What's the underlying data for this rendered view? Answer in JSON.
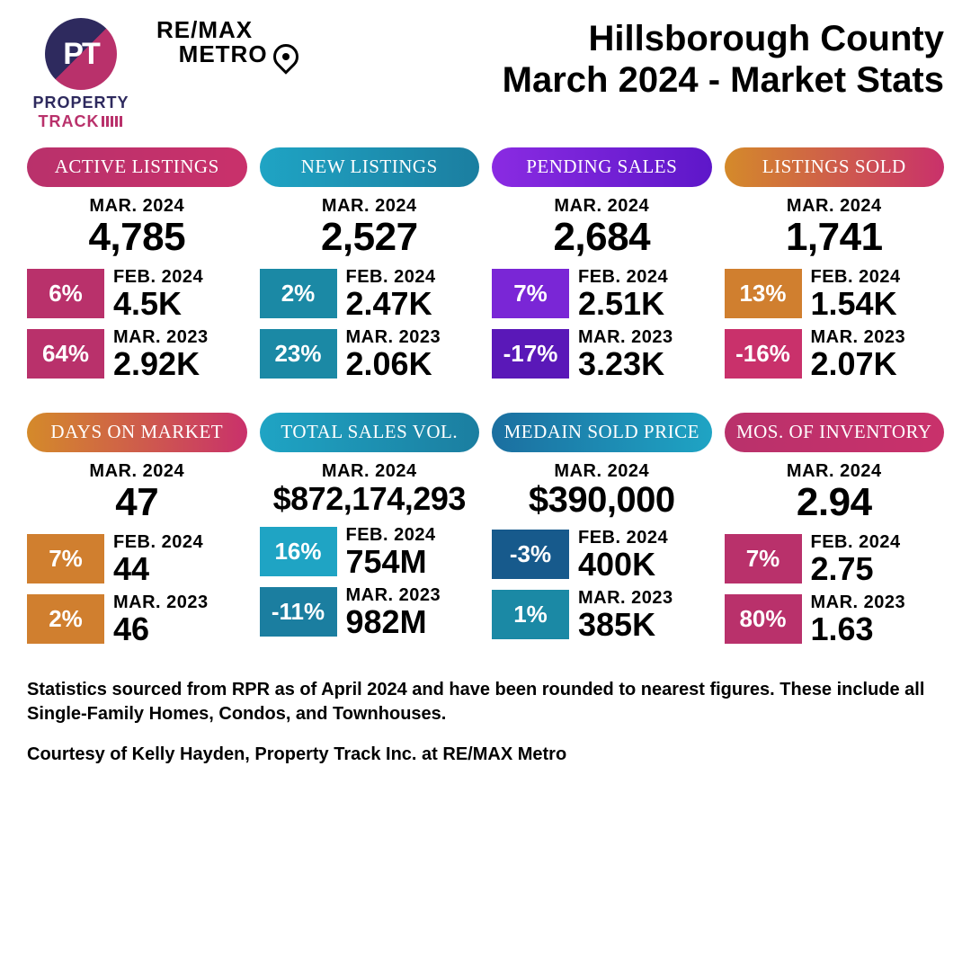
{
  "header": {
    "logo1_top": "PT",
    "logo1_line1": "PROPERTY",
    "logo1_line2": "TRACK",
    "logo2_line1": "RE/MAX",
    "logo2_line2": "METRO",
    "title_line1": "Hillsborough County",
    "title_line2": "March 2024 - Market Stats"
  },
  "cards": [
    {
      "label": "ACTIVE LISTINGS",
      "pill_gradient": "linear-gradient(90deg,#b9316b,#c9316b)",
      "current_label": "MAR. 2024",
      "current_value": "4,785",
      "rows": [
        {
          "pct": "6%",
          "box_bg": "#b9316b",
          "lbl": "FEB. 2024",
          "val": "4.5K"
        },
        {
          "pct": "64%",
          "box_bg": "#b9316b",
          "lbl": "MAR. 2023",
          "val": "2.92K"
        }
      ]
    },
    {
      "label": "NEW LISTINGS",
      "pill_gradient": "linear-gradient(90deg,#1fa4c4,#1b7ea0)",
      "current_label": "MAR. 2024",
      "current_value": "2,527",
      "rows": [
        {
          "pct": "2%",
          "box_bg": "#1b89a5",
          "lbl": "FEB. 2024",
          "val": "2.47K"
        },
        {
          "pct": "23%",
          "box_bg": "#1b89a5",
          "lbl": "MAR. 2023",
          "val": "2.06K"
        }
      ]
    },
    {
      "label": "PENDING SALES",
      "pill_gradient": "linear-gradient(90deg,#8a2be2,#5e17c9)",
      "current_label": "MAR. 2024",
      "current_value": "2,684",
      "rows": [
        {
          "pct": "7%",
          "box_bg": "#7a26d6",
          "lbl": "FEB. 2024",
          "val": "2.51K"
        },
        {
          "pct": "-17%",
          "box_bg": "#5a18b8",
          "lbl": "MAR. 2023",
          "val": "3.23K"
        }
      ]
    },
    {
      "label": "LISTINGS SOLD",
      "pill_gradient": "linear-gradient(90deg,#d48a2a,#c9316b)",
      "current_label": "MAR. 2024",
      "current_value": "1,741",
      "rows": [
        {
          "pct": "13%",
          "box_bg": "#d07f2f",
          "lbl": "FEB. 2024",
          "val": "1.54K"
        },
        {
          "pct": "-16%",
          "box_bg": "#c9316b",
          "lbl": "MAR. 2023",
          "val": "2.07K"
        }
      ]
    },
    {
      "label": "DAYS ON MARKET",
      "pill_gradient": "linear-gradient(90deg,#d48a2a,#c9316b)",
      "current_label": "MAR. 2024",
      "current_value": "47",
      "rows": [
        {
          "pct": "7%",
          "box_bg": "#d07f2f",
          "lbl": "FEB. 2024",
          "val": "44"
        },
        {
          "pct": "2%",
          "box_bg": "#d07f2f",
          "lbl": "MAR. 2023",
          "val": "46"
        }
      ]
    },
    {
      "label": "TOTAL SALES VOL.",
      "pill_gradient": "linear-gradient(90deg,#1fa4c4,#1b7ea0)",
      "current_label": "MAR. 2024",
      "current_value": "$872,174,293",
      "current_size": "36px",
      "rows": [
        {
          "pct": "16%",
          "box_bg": "#1fa4c4",
          "lbl": "FEB. 2024",
          "val": "754M"
        },
        {
          "pct": "-11%",
          "box_bg": "#1b7ea0",
          "lbl": "MAR. 2023",
          "val": "982M"
        }
      ]
    },
    {
      "label": "MEDAIN SOLD PRICE",
      "pill_gradient": "linear-gradient(90deg,#1b6fa0,#1fa4c4)",
      "current_label": "MAR. 2024",
      "current_value": "$390,000",
      "current_size": "40px",
      "rows": [
        {
          "pct": "-3%",
          "box_bg": "#175a8c",
          "lbl": "FEB. 2024",
          "val": "400K"
        },
        {
          "pct": "1%",
          "box_bg": "#1b89a5",
          "lbl": "MAR. 2023",
          "val": "385K"
        }
      ]
    },
    {
      "label": "MOS. OF INVENTORY",
      "pill_gradient": "linear-gradient(90deg,#b9316b,#c9316b)",
      "current_label": "MAR. 2024",
      "current_value": "2.94",
      "rows": [
        {
          "pct": "7%",
          "box_bg": "#b9316b",
          "lbl": "FEB. 2024",
          "val": "2.75"
        },
        {
          "pct": "80%",
          "box_bg": "#b9316b",
          "lbl": "MAR. 2023",
          "val": "1.63"
        }
      ]
    }
  ],
  "footnote1": "Statistics sourced from RPR as of April 2024 and have been rounded to nearest figures. These include all Single-Family Homes, Condos, and Townhouses.",
  "footnote2": "Courtesy of Kelly Hayden, Property Track Inc. at RE/MAX Metro"
}
